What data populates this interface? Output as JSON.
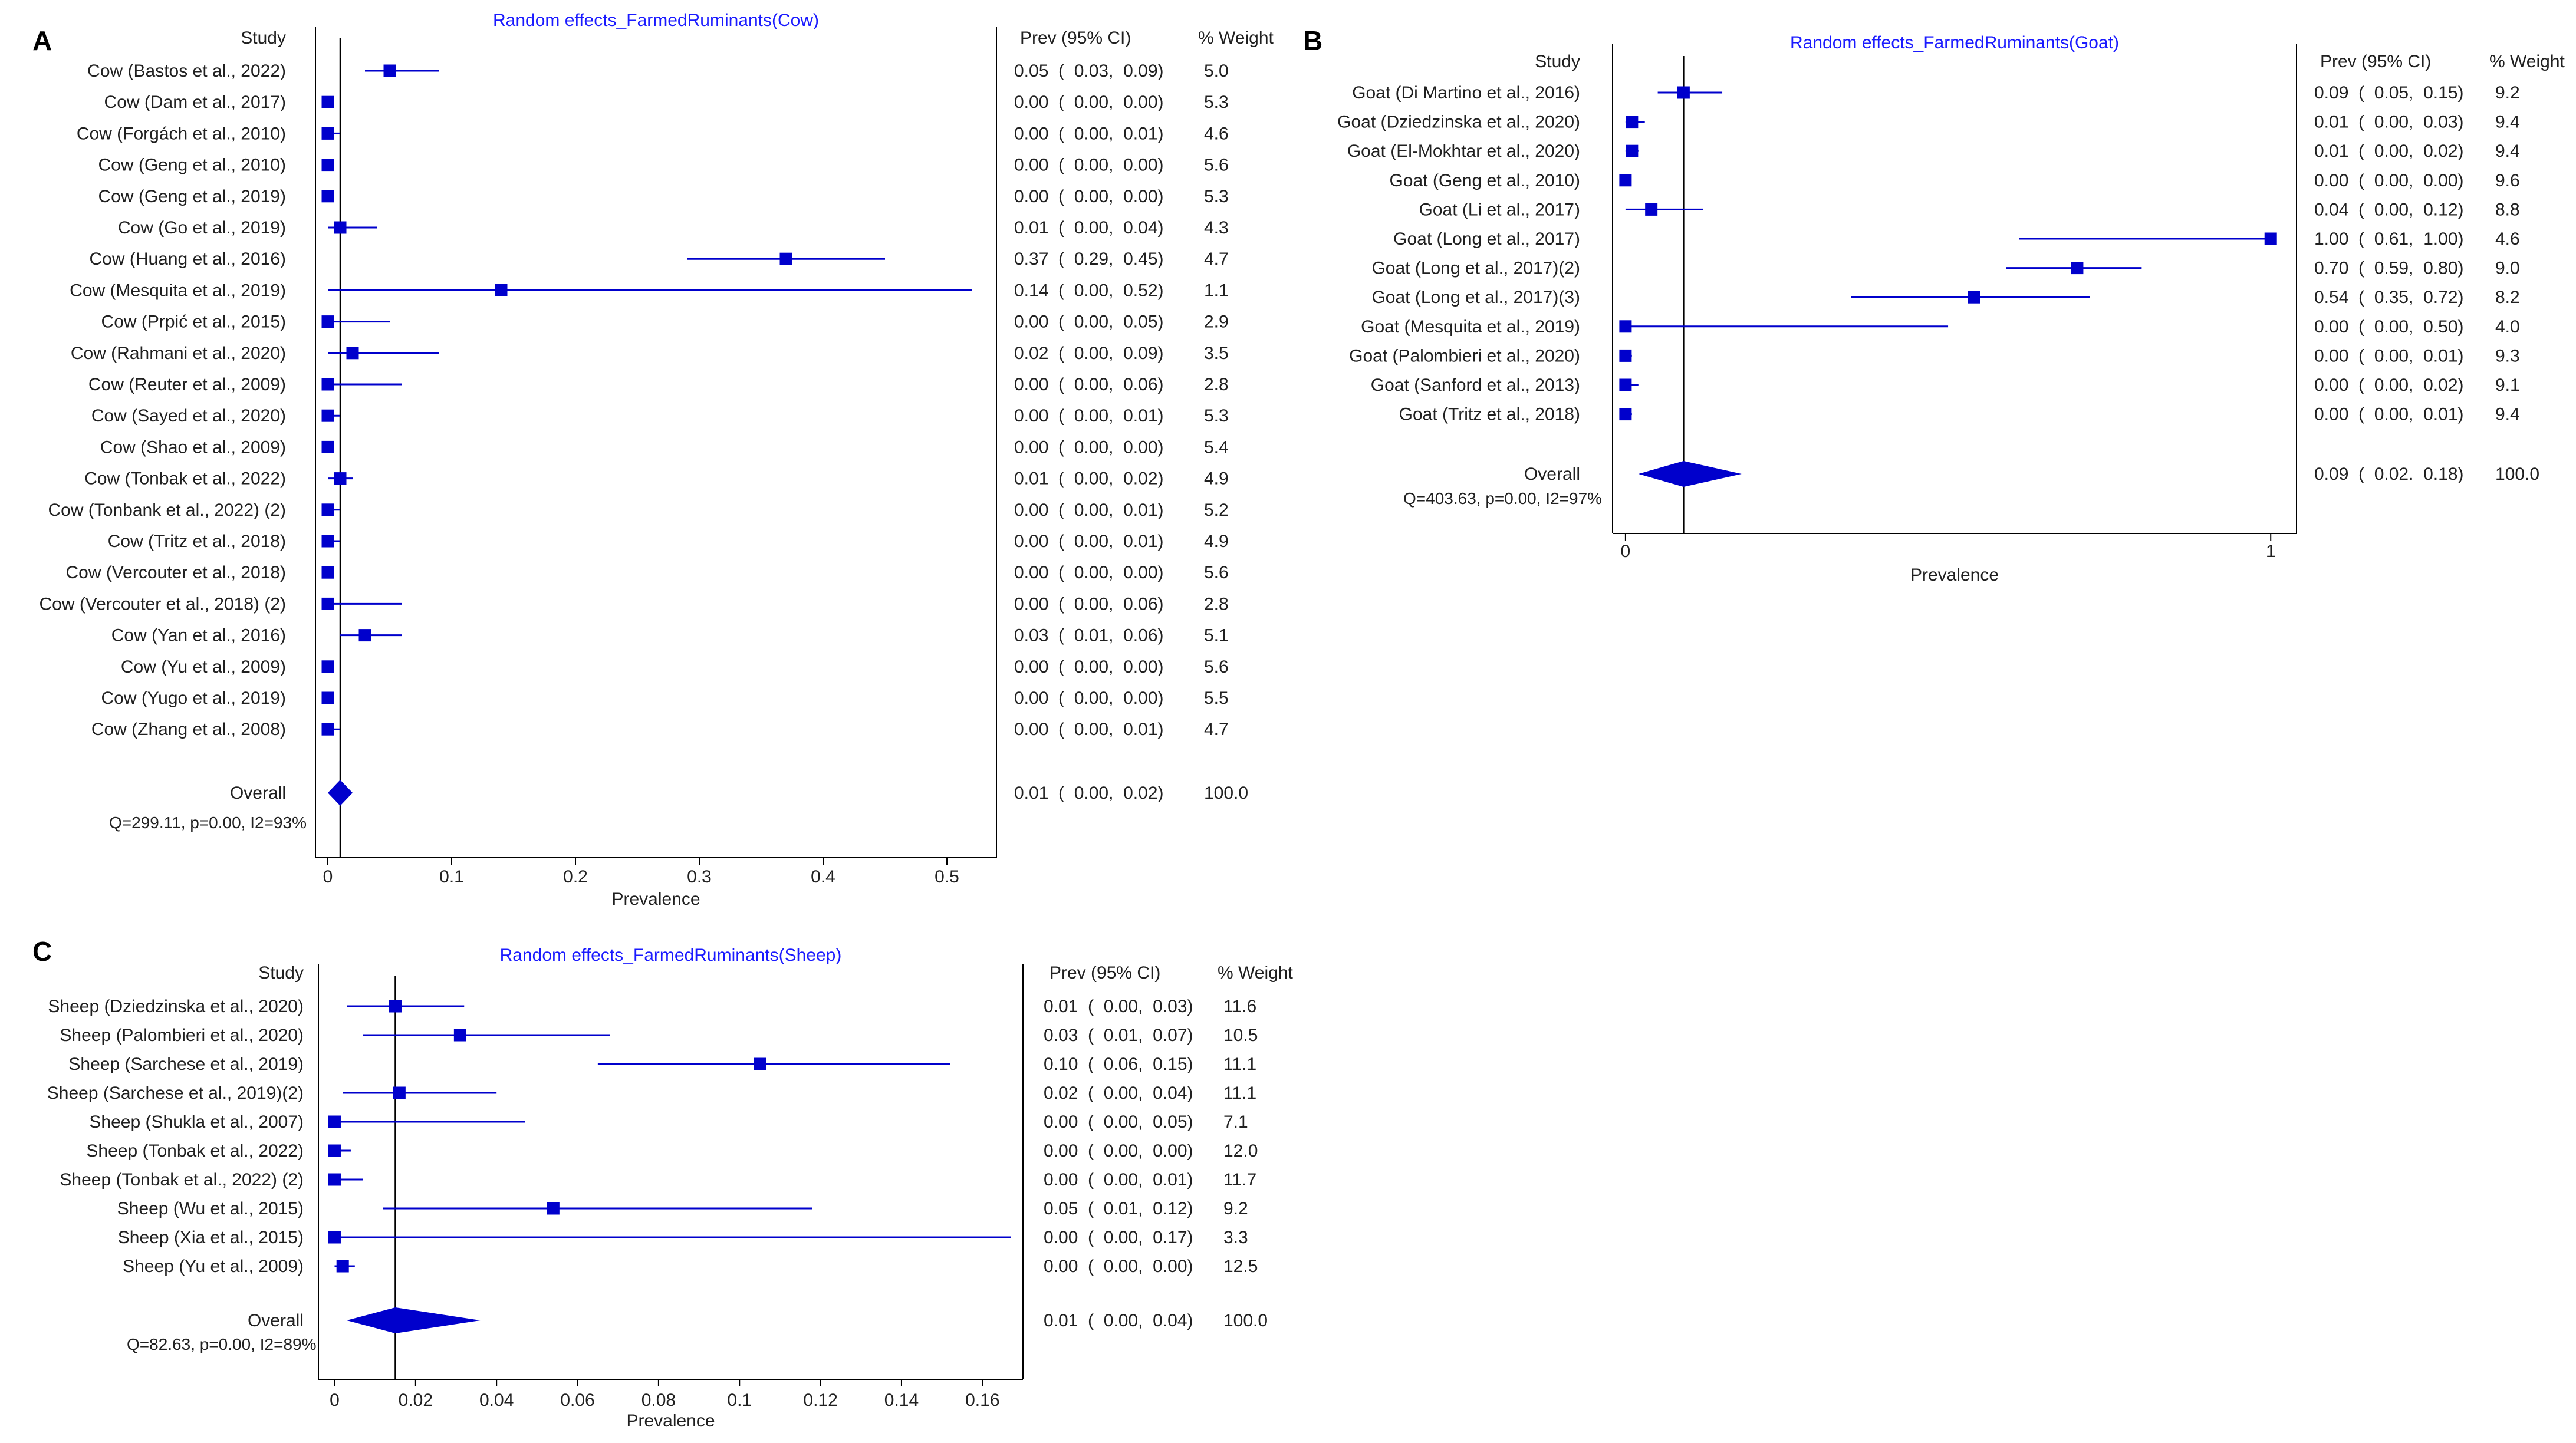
{
  "colors": {
    "marker": "#0000cc",
    "title": "#1a1aff",
    "text": "#202020",
    "axis": "#000000"
  },
  "chart_data": [
    {
      "panel_label": "A",
      "type": "forest",
      "title": "Random effects_FarmedRuminants(Cow)",
      "study_header": "Study",
      "prev_header": "Prev (95% CI)",
      "weight_header": "% Weight",
      "xlabel": "Prevalence",
      "xlim": [
        -0.01,
        0.54
      ],
      "xticks": [
        0,
        0.1,
        0.2,
        0.3,
        0.4,
        0.5
      ],
      "xtick_labels": [
        "0",
        "0.1",
        "0.2",
        "0.3",
        "0.4",
        "0.5"
      ],
      "pooled": 0.01,
      "studies": [
        {
          "label": "Cow (Bastos et al., 2022)",
          "est": 0.05,
          "lo": 0.03,
          "hi": 0.09,
          "prev_text": "0.05  (  0.03,  0.09)",
          "weight": "5.0"
        },
        {
          "label": "Cow (Dam et al., 2017)",
          "est": 0.0,
          "lo": 0.0,
          "hi": 0.0,
          "prev_text": "0.00  (  0.00,  0.00)",
          "weight": "5.3"
        },
        {
          "label": "Cow (Forgách et al., 2010)",
          "est": 0.0,
          "lo": 0.0,
          "hi": 0.01,
          "prev_text": "0.00  (  0.00,  0.01)",
          "weight": "4.6"
        },
        {
          "label": "Cow (Geng et al., 2010)",
          "est": 0.0,
          "lo": 0.0,
          "hi": 0.0,
          "prev_text": "0.00  (  0.00,  0.00)",
          "weight": "5.6"
        },
        {
          "label": "Cow (Geng et al., 2019)",
          "est": 0.0,
          "lo": 0.0,
          "hi": 0.0,
          "prev_text": "0.00  (  0.00,  0.00)",
          "weight": "5.3"
        },
        {
          "label": "Cow (Go et al., 2019)",
          "est": 0.01,
          "lo": 0.0,
          "hi": 0.04,
          "prev_text": "0.01  (  0.00,  0.04)",
          "weight": "4.3"
        },
        {
          "label": "Cow (Huang et al., 2016)",
          "est": 0.37,
          "lo": 0.29,
          "hi": 0.45,
          "prev_text": "0.37  (  0.29,  0.45)",
          "weight": "4.7"
        },
        {
          "label": "Cow (Mesquita et al., 2019)",
          "est": 0.14,
          "lo": 0.0,
          "hi": 0.52,
          "prev_text": "0.14  (  0.00,  0.52)",
          "weight": "1.1"
        },
        {
          "label": "Cow (Prpić  et al., 2015)",
          "est": 0.0,
          "lo": 0.0,
          "hi": 0.05,
          "prev_text": "0.00  (  0.00,  0.05)",
          "weight": "2.9"
        },
        {
          "label": "Cow (Rahmani et al., 2020)",
          "est": 0.02,
          "lo": 0.0,
          "hi": 0.09,
          "prev_text": "0.02  (  0.00,  0.09)",
          "weight": "3.5"
        },
        {
          "label": "Cow (Reuter et al., 2009)",
          "est": 0.0,
          "lo": 0.0,
          "hi": 0.06,
          "prev_text": "0.00  (  0.00,  0.06)",
          "weight": "2.8"
        },
        {
          "label": "Cow (Sayed et al., 2020)",
          "est": 0.0,
          "lo": 0.0,
          "hi": 0.01,
          "prev_text": "0.00  (  0.00,  0.01)",
          "weight": "5.3"
        },
        {
          "label": "Cow (Shao et al., 2009)",
          "est": 0.0,
          "lo": 0.0,
          "hi": 0.0,
          "prev_text": "0.00  (  0.00,  0.00)",
          "weight": "5.4"
        },
        {
          "label": "Cow (Tonbak et al., 2022)",
          "est": 0.01,
          "lo": 0.0,
          "hi": 0.02,
          "prev_text": "0.01  (  0.00,  0.02)",
          "weight": "4.9"
        },
        {
          "label": "Cow (Tonbank et al., 2022) (2)",
          "est": 0.0,
          "lo": 0.0,
          "hi": 0.01,
          "prev_text": "0.00  (  0.00,  0.01)",
          "weight": "5.2"
        },
        {
          "label": "Cow (Tritz et al., 2018)",
          "est": 0.0,
          "lo": 0.0,
          "hi": 0.01,
          "prev_text": "0.00  (  0.00,  0.01)",
          "weight": "4.9"
        },
        {
          "label": "Cow (Vercouter et al., 2018)",
          "est": 0.0,
          "lo": 0.0,
          "hi": 0.0,
          "prev_text": "0.00  (  0.00,  0.00)",
          "weight": "5.6"
        },
        {
          "label": "Cow (Vercouter et al., 2018) (2)",
          "est": 0.0,
          "lo": 0.0,
          "hi": 0.06,
          "prev_text": "0.00  (  0.00,  0.06)",
          "weight": "2.8"
        },
        {
          "label": "Cow (Yan et al., 2016)",
          "est": 0.03,
          "lo": 0.01,
          "hi": 0.06,
          "prev_text": "0.03  (  0.01,  0.06)",
          "weight": "5.1"
        },
        {
          "label": "Cow (Yu et al., 2009)",
          "est": 0.0,
          "lo": 0.0,
          "hi": 0.0,
          "prev_text": "0.00  (  0.00,  0.00)",
          "weight": "5.6"
        },
        {
          "label": "Cow (Yugo et al., 2019)",
          "est": 0.0,
          "lo": 0.0,
          "hi": 0.0,
          "prev_text": "0.00  (  0.00,  0.00)",
          "weight": "5.5"
        },
        {
          "label": "Cow (Zhang et al., 2008)",
          "est": 0.0,
          "lo": 0.0,
          "hi": 0.01,
          "prev_text": "0.00  (  0.00,  0.01)",
          "weight": "4.7"
        }
      ],
      "overall": {
        "label": "Overall",
        "est": 0.01,
        "lo": 0.0,
        "hi": 0.02,
        "prev_text": "0.01  (  0.00,  0.02)",
        "weight": "100.0"
      },
      "heterogeneity": "Q=299.11, p=0.00, I2=93%"
    },
    {
      "panel_label": "B",
      "type": "forest",
      "title": "Random effects_FarmedRuminants(Goat)",
      "study_header": "Study",
      "prev_header": "Prev (95% CI)",
      "weight_header": "% Weight",
      "xlabel": "Prevalence",
      "xlim": [
        -0.02,
        1.04
      ],
      "xticks": [
        0,
        1
      ],
      "xtick_labels": [
        "0",
        "1"
      ],
      "pooled": 0.09,
      "studies": [
        {
          "label": "Goat (Di Martino et al., 2016)",
          "est": 0.09,
          "lo": 0.05,
          "hi": 0.15,
          "prev_text": "0.09  (  0.05,  0.15)",
          "weight": "9.2"
        },
        {
          "label": "Goat (Dziedzinska et al., 2020)",
          "est": 0.01,
          "lo": 0.0,
          "hi": 0.03,
          "prev_text": "0.01  (  0.00,  0.03)",
          "weight": "9.4"
        },
        {
          "label": "Goat (El-Mokhtar et al., 2020)",
          "est": 0.01,
          "lo": 0.0,
          "hi": 0.02,
          "prev_text": "0.01  (  0.00,  0.02)",
          "weight": "9.4"
        },
        {
          "label": "Goat (Geng et al., 2010)",
          "est": 0.0,
          "lo": 0.0,
          "hi": 0.0,
          "prev_text": "0.00  (  0.00,  0.00)",
          "weight": "9.6"
        },
        {
          "label": "Goat (Li et al., 2017)",
          "est": 0.04,
          "lo": 0.0,
          "hi": 0.12,
          "prev_text": "0.04  (  0.00,  0.12)",
          "weight": "8.8"
        },
        {
          "label": "Goat (Long et al., 2017)",
          "est": 1.0,
          "lo": 0.61,
          "hi": 1.0,
          "prev_text": "1.00  (  0.61,  1.00)",
          "weight": "4.6"
        },
        {
          "label": "Goat (Long et al., 2017)(2)",
          "est": 0.7,
          "lo": 0.59,
          "hi": 0.8,
          "prev_text": "0.70  (  0.59,  0.80)",
          "weight": "9.0"
        },
        {
          "label": "Goat (Long et al., 2017)(3)",
          "est": 0.54,
          "lo": 0.35,
          "hi": 0.72,
          "prev_text": "0.54  (  0.35,  0.72)",
          "weight": "8.2"
        },
        {
          "label": "Goat (Mesquita et al., 2019)",
          "est": 0.0,
          "lo": 0.0,
          "hi": 0.5,
          "prev_text": "0.00  (  0.00,  0.50)",
          "weight": "4.0"
        },
        {
          "label": "Goat (Palombieri et al., 2020)",
          "est": 0.0,
          "lo": 0.0,
          "hi": 0.01,
          "prev_text": "0.00  (  0.00,  0.01)",
          "weight": "9.3"
        },
        {
          "label": "Goat (Sanford et al., 2013)",
          "est": 0.0,
          "lo": 0.0,
          "hi": 0.02,
          "prev_text": "0.00  (  0.00,  0.02)",
          "weight": "9.1"
        },
        {
          "label": "Goat (Tritz et al., 2018)",
          "est": 0.0,
          "lo": 0.0,
          "hi": 0.01,
          "prev_text": "0.00  (  0.00,  0.01)",
          "weight": "9.4"
        }
      ],
      "overall": {
        "label": "Overall",
        "est": 0.09,
        "lo": 0.02,
        "hi": 0.18,
        "prev_text": "0.09  (  0.02.  0.18)",
        "weight": "100.0"
      },
      "heterogeneity": "Q=403.63, p=0.00, I2=97%"
    },
    {
      "panel_label": "C",
      "type": "forest",
      "title": "Random effects_FarmedRuminants(Sheep)",
      "study_header": "Study",
      "prev_header": "Prev (95% CI)",
      "weight_header": "% Weight",
      "xlabel": "Prevalence",
      "xlim": [
        -0.004,
        0.17
      ],
      "xticks": [
        0,
        0.02,
        0.04,
        0.06,
        0.08,
        0.1,
        0.12,
        0.14,
        0.16
      ],
      "xtick_labels": [
        "0",
        "0.02",
        "0.04",
        "0.06",
        "0.08",
        "0.1",
        "0.12",
        "0.14",
        "0.16"
      ],
      "pooled": 0.015,
      "studies": [
        {
          "label": "Sheep (Dziedzinska et al., 2020)",
          "est": 0.015,
          "lo": 0.003,
          "hi": 0.032,
          "prev_text": "0.01  (  0.00,  0.03)",
          "weight": "11.6"
        },
        {
          "label": "Sheep (Palombieri et al., 2020)",
          "est": 0.031,
          "lo": 0.007,
          "hi": 0.068,
          "prev_text": "0.03  (  0.01,  0.07)",
          "weight": "10.5"
        },
        {
          "label": "Sheep (Sarchese et al., 2019)",
          "est": 0.105,
          "lo": 0.065,
          "hi": 0.152,
          "prev_text": "0.10  (  0.06,  0.15)",
          "weight": "11.1"
        },
        {
          "label": "Sheep (Sarchese et al., 2019)(2)",
          "est": 0.016,
          "lo": 0.002,
          "hi": 0.04,
          "prev_text": "0.02  (  0.00,  0.04)",
          "weight": "11.1"
        },
        {
          "label": "Sheep (Shukla et al., 2007)",
          "est": 0.0,
          "lo": 0.0,
          "hi": 0.047,
          "prev_text": "0.00  (  0.00,  0.05)",
          "weight": "7.1"
        },
        {
          "label": "Sheep (Tonbak et al., 2022)",
          "est": 0.0,
          "lo": 0.0,
          "hi": 0.004,
          "prev_text": "0.00  (  0.00,  0.00)",
          "weight": "12.0"
        },
        {
          "label": "Sheep (Tonbak et al., 2022) (2)",
          "est": 0.0,
          "lo": 0.0,
          "hi": 0.007,
          "prev_text": "0.00  (  0.00,  0.01)",
          "weight": "11.7"
        },
        {
          "label": "Sheep (Wu et al., 2015)",
          "est": 0.054,
          "lo": 0.012,
          "hi": 0.118,
          "prev_text": "0.05  (  0.01,  0.12)",
          "weight": "9.2"
        },
        {
          "label": "Sheep (Xia et al., 2015)",
          "est": 0.0,
          "lo": 0.0,
          "hi": 0.167,
          "prev_text": "0.00  (  0.00,  0.17)",
          "weight": "3.3"
        },
        {
          "label": "Sheep (Yu et al., 2009)",
          "est": 0.002,
          "lo": 0.0,
          "hi": 0.005,
          "prev_text": "0.00  (  0.00,  0.00)",
          "weight": "12.5"
        }
      ],
      "overall": {
        "label": "Overall",
        "est": 0.015,
        "lo": 0.003,
        "hi": 0.036,
        "prev_text": "0.01  (  0.00,  0.04)",
        "weight": "100.0"
      },
      "heterogeneity": "Q=82.63, p=0.00, I2=89%"
    }
  ]
}
